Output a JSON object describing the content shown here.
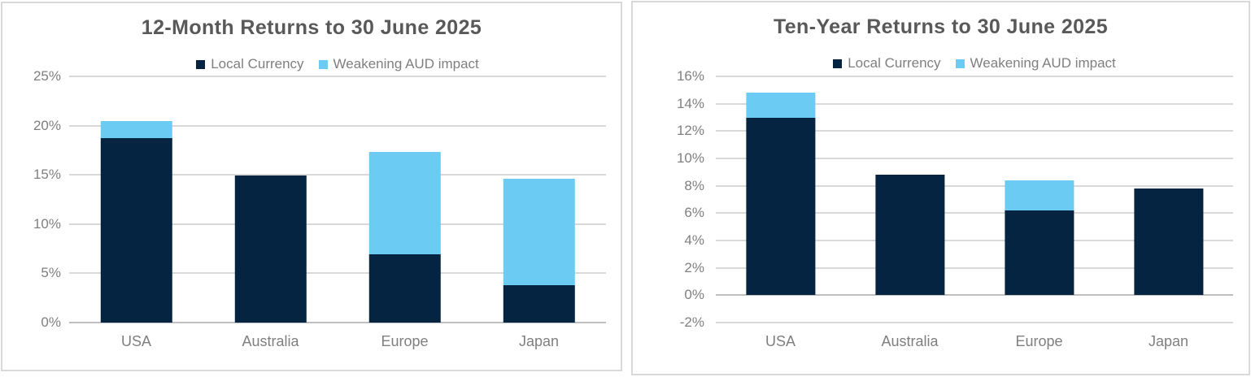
{
  "colors": {
    "navy": "#042442",
    "light_blue": "#6CCBF2",
    "title_text": "#595959",
    "axis_text": "#7f7f7f",
    "gridline": "#d9d9d9",
    "zero_line": "#bfbfbf",
    "panel_border": "#d9d9d9"
  },
  "chart_data": [
    {
      "type": "bar",
      "stacked": true,
      "title": "12-Month Returns to 30 June 2025",
      "categories": [
        "USA",
        "Australia",
        "Europe",
        "Japan"
      ],
      "series": [
        {
          "name": "Local Currency",
          "color": "#042442",
          "values": [
            18.7,
            14.9,
            6.9,
            3.8
          ]
        },
        {
          "name": "Weakening AUD impact",
          "color": "#6CCBF2",
          "values": [
            1.8,
            0,
            10.4,
            10.8
          ]
        }
      ],
      "stack_totals": [
        20.5,
        14.9,
        17.3,
        14.6
      ],
      "xlabel": "",
      "ylabel": "",
      "ylim": [
        0,
        25
      ],
      "ytick_step": 5,
      "ytick_labels": [
        "25%",
        "20%",
        "15%",
        "10%",
        "5%",
        "0%"
      ],
      "tick_suffix": "%",
      "grid": true,
      "legend_position": "top"
    },
    {
      "type": "bar",
      "stacked": true,
      "title": "Ten-Year Returns to 30 June 2025",
      "categories": [
        "USA",
        "Australia",
        "Europe",
        "Japan"
      ],
      "series": [
        {
          "name": "Local Currency",
          "color": "#042442",
          "values": [
            13.0,
            8.8,
            6.2,
            7.8
          ]
        },
        {
          "name": "Weakening AUD impact",
          "color": "#6CCBF2",
          "values": [
            1.8,
            0,
            2.2,
            0
          ]
        }
      ],
      "stack_totals": [
        14.8,
        8.8,
        8.4,
        7.8
      ],
      "xlabel": "",
      "ylabel": "",
      "ylim": [
        -2,
        16
      ],
      "ytick_step": 2,
      "ytick_labels": [
        "16%",
        "14%",
        "12%",
        "10%",
        "8%",
        "6%",
        "4%",
        "2%",
        "0%",
        "-2%"
      ],
      "tick_suffix": "%",
      "grid": true,
      "legend_position": "top"
    }
  ]
}
